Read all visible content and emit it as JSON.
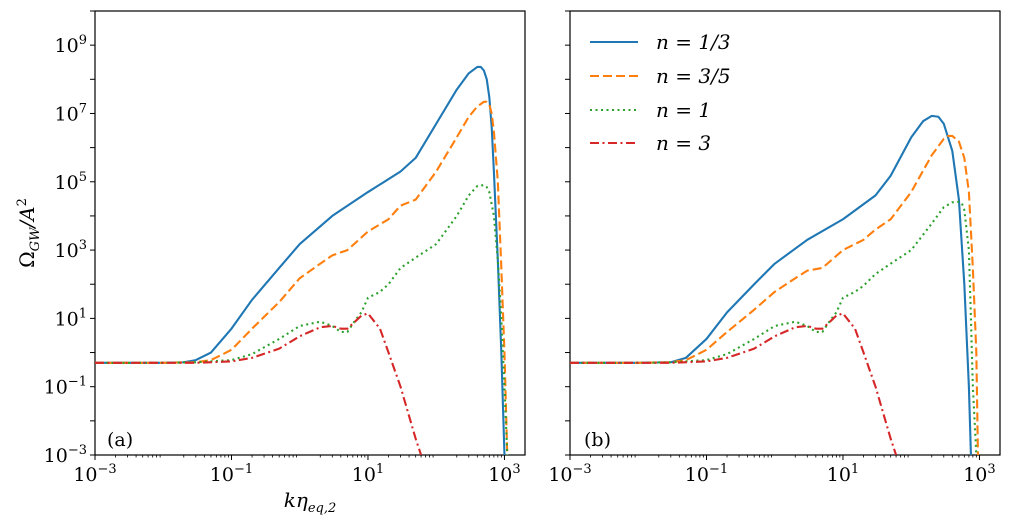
{
  "chart_data": [
    {
      "type": "line",
      "panel_label": "(a)",
      "xscale": "log",
      "yscale": "log",
      "xlim": [
        0.001,
        2000
      ],
      "ylim": [
        0.001,
        10000000000
      ],
      "xlabel_base": "k",
      "xlabel_greek": "η",
      "xlabel_sub": "eq,2",
      "ylabel_base": "Ω",
      "ylabel_sub": "GW",
      "ylabel_rest": "/A",
      "ylabel_sup": "2",
      "xticks": [
        {
          "value": 0.001,
          "base": "10",
          "exp": "−3"
        },
        {
          "value": 0.1,
          "base": "10",
          "exp": "−1"
        },
        {
          "value": 10,
          "base": "10",
          "exp": "1"
        },
        {
          "value": 1000,
          "base": "10",
          "exp": "3"
        }
      ],
      "yticks": [
        {
          "value": 0.001,
          "base": "10",
          "exp": "−3"
        },
        {
          "value": 0.1,
          "base": "10",
          "exp": "−1"
        },
        {
          "value": 10,
          "base": "10",
          "exp": "1"
        },
        {
          "value": 1000,
          "base": "10",
          "exp": "3"
        },
        {
          "value": 100000,
          "base": "10",
          "exp": "5"
        },
        {
          "value": 10000000,
          "base": "10",
          "exp": "7"
        },
        {
          "value": 1000000000,
          "base": "10",
          "exp": "9"
        }
      ],
      "series": [
        {
          "name": "n = 1/3",
          "color": "#1f77b4",
          "dash": "solid",
          "x": [
            0.001,
            0.003,
            0.01,
            0.02,
            0.03,
            0.05,
            0.1,
            0.2,
            0.5,
            1,
            3,
            10,
            30,
            50,
            100,
            200,
            300,
            400,
            450,
            500,
            550,
            600,
            650,
            700,
            800,
            900,
            1000
          ],
          "y": [
            0.5,
            0.5,
            0.5,
            0.52,
            0.6,
            1.0,
            5,
            35,
            300,
            1500,
            10000,
            50000,
            200000,
            500000,
            5000000,
            50000000,
            150000000,
            230000000,
            230000000,
            180000000,
            100000000,
            30000000,
            4000000,
            200000,
            500,
            1,
            0.001
          ]
        },
        {
          "name": "n = 3/5",
          "color": "#ff7f0e",
          "dash": "dashed",
          "x": [
            0.001,
            0.003,
            0.01,
            0.03,
            0.05,
            0.1,
            0.2,
            0.5,
            1,
            2,
            3,
            5,
            10,
            20,
            30,
            50,
            100,
            200,
            300,
            400,
            500,
            550,
            600,
            650,
            700,
            800,
            900,
            1000,
            1100
          ],
          "y": [
            0.5,
            0.5,
            0.5,
            0.52,
            0.6,
            1.2,
            5,
            30,
            150,
            400,
            700,
            1000,
            3500,
            8000,
            20000,
            30000,
            200000,
            2000000,
            8000000,
            16000000,
            22000000,
            22000000,
            18000000,
            10000000,
            3000000,
            100000,
            300,
            1,
            0.001
          ]
        },
        {
          "name": "n = 1",
          "color": "#2ca02c",
          "dash": "dotted",
          "x": [
            0.001,
            0.003,
            0.01,
            0.03,
            0.1,
            0.2,
            0.5,
            1,
            2,
            3,
            4,
            5,
            6,
            8,
            10,
            15,
            20,
            30,
            50,
            100,
            200,
            300,
            400,
            500,
            550,
            600,
            700,
            800,
            900,
            1000,
            1100
          ],
          "y": [
            0.5,
            0.5,
            0.5,
            0.52,
            0.6,
            0.9,
            2.5,
            6,
            8,
            6,
            4,
            4,
            7,
            15,
            40,
            60,
            100,
            300,
            600,
            1500,
            10000,
            40000,
            75000,
            80000,
            70000,
            50000,
            10000,
            500,
            10,
            0.1,
            0.001
          ]
        },
        {
          "name": "n = 3",
          "color": "#d62728",
          "dash": "dashdot",
          "x": [
            0.001,
            0.003,
            0.01,
            0.03,
            0.1,
            0.2,
            0.5,
            1,
            2,
            3,
            4,
            5,
            6,
            8,
            10,
            15,
            20,
            30,
            50,
            60
          ],
          "y": [
            0.5,
            0.5,
            0.5,
            0.5,
            0.55,
            0.7,
            1.3,
            3,
            5.5,
            6,
            5,
            5,
            7,
            12,
            14,
            5,
            1,
            0.1,
            0.003,
            0.001
          ]
        }
      ]
    },
    {
      "type": "line",
      "panel_label": "(b)",
      "xscale": "log",
      "yscale": "log",
      "xlim": [
        0.001,
        2000
      ],
      "ylim": [
        0.001,
        10000000000
      ],
      "xticks": [
        {
          "value": 0.001,
          "base": "10",
          "exp": "−3"
        },
        {
          "value": 0.1,
          "base": "10",
          "exp": "−1"
        },
        {
          "value": 10,
          "base": "10",
          "exp": "1"
        },
        {
          "value": 1000,
          "base": "10",
          "exp": "3"
        }
      ],
      "legend_position": "top-left",
      "legend": [
        {
          "label": "n = 1/3",
          "color": "#1f77b4",
          "dash": "solid"
        },
        {
          "label": "n = 3/5",
          "color": "#ff7f0e",
          "dash": "dashed"
        },
        {
          "label": "n = 1",
          "color": "#2ca02c",
          "dash": "dotted"
        },
        {
          "label": "n = 3",
          "color": "#d62728",
          "dash": "dashdot"
        }
      ],
      "series": [
        {
          "name": "n = 1/3",
          "color": "#1f77b4",
          "dash": "solid",
          "x": [
            0.001,
            0.003,
            0.01,
            0.03,
            0.05,
            0.1,
            0.2,
            0.5,
            1,
            3,
            10,
            30,
            50,
            100,
            150,
            200,
            250,
            300,
            400,
            500,
            600,
            700,
            750
          ],
          "y": [
            0.5,
            0.5,
            0.5,
            0.52,
            0.7,
            2.5,
            15,
            100,
            400,
            2000,
            8000,
            40000,
            150000,
            2000000,
            6000000,
            8500000,
            8000000,
            5000000,
            800000,
            30000,
            100,
            0.1,
            0.001
          ]
        },
        {
          "name": "n = 3/5",
          "color": "#ff7f0e",
          "dash": "dashed",
          "x": [
            0.001,
            0.003,
            0.01,
            0.03,
            0.05,
            0.1,
            0.2,
            0.5,
            1,
            2,
            3,
            5,
            10,
            20,
            30,
            50,
            100,
            200,
            300,
            350,
            400,
            500,
            600,
            700,
            800,
            900,
            950
          ],
          "y": [
            0.5,
            0.5,
            0.5,
            0.52,
            0.6,
            1.2,
            4,
            18,
            60,
            150,
            250,
            300,
            1000,
            2000,
            4000,
            8000,
            50000,
            600000,
            1800000,
            2200000,
            2200000,
            1500000,
            500000,
            50000,
            300,
            1,
            0.001
          ]
        },
        {
          "name": "n = 1",
          "color": "#2ca02c",
          "dash": "dotted",
          "x": [
            0.001,
            0.003,
            0.01,
            0.03,
            0.1,
            0.2,
            0.5,
            1,
            2,
            3,
            4,
            5,
            6,
            8,
            10,
            15,
            20,
            30,
            50,
            100,
            200,
            300,
            400,
            500,
            550,
            600,
            700,
            750,
            800,
            900
          ],
          "y": [
            0.5,
            0.5,
            0.5,
            0.52,
            0.6,
            0.9,
            2.5,
            6,
            8,
            6,
            4,
            4,
            7,
            15,
            40,
            60,
            90,
            200,
            400,
            1000,
            6000,
            18000,
            25000,
            26000,
            24000,
            15000,
            1000,
            10,
            0.1,
            0.001
          ]
        },
        {
          "name": "n = 3",
          "color": "#d62728",
          "dash": "dashdot",
          "x": [
            0.001,
            0.003,
            0.01,
            0.03,
            0.1,
            0.2,
            0.5,
            1,
            2,
            3,
            4,
            5,
            6,
            8,
            10,
            15,
            20,
            30,
            50,
            60
          ],
          "y": [
            0.5,
            0.5,
            0.5,
            0.5,
            0.55,
            0.7,
            1.3,
            3,
            5.5,
            6,
            5,
            5,
            7,
            12,
            14,
            5,
            1,
            0.1,
            0.003,
            0.001
          ]
        }
      ]
    }
  ]
}
